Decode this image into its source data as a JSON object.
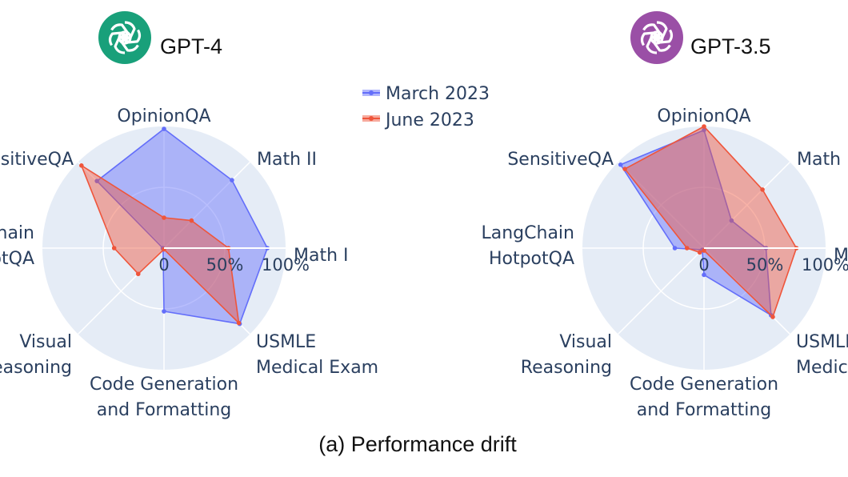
{
  "caption": "(a) Performance drift",
  "legend": [
    {
      "name": "March 2023",
      "color": "#636efa"
    },
    {
      "name": "June 2023",
      "color": "#ef553b"
    }
  ],
  "chart_data": [
    {
      "type": "radar",
      "title": "GPT-4",
      "logo_icon": "openai-logo-icon",
      "logo_color": "#19a07a",
      "categories": [
        "Math I",
        "Math II",
        "OpinionQA",
        "SensitiveQA",
        "LangChain HotpotQA",
        "Visual Reasoning",
        "Code Generation and Formatting",
        "USMLE Medical Exam"
      ],
      "radial_ticks": [
        "0",
        "50%",
        "100%"
      ],
      "range": [
        0,
        100
      ],
      "series": [
        {
          "name": "March 2023",
          "values": [
            85,
            79,
            98,
            78,
            1,
            1,
            52,
            88
          ]
        },
        {
          "name": "June 2023",
          "values": [
            53,
            32,
            25,
            96,
            41,
            30,
            1,
            87
          ]
        }
      ]
    },
    {
      "type": "radar",
      "title": "GPT-3.5",
      "logo_icon": "openai-logo-icon",
      "logo_color": "#9a4fa6",
      "categories": [
        "Math I",
        "Math II",
        "OpinionQA",
        "SensitiveQA",
        "LangChain HotpotQA",
        "Visual Reasoning",
        "Code Generation and Formatting",
        "USMLE Medical Exam"
      ],
      "radial_ticks": [
        "0",
        "50%",
        "100%"
      ],
      "range": [
        0,
        100
      ],
      "series": [
        {
          "name": "March 2023",
          "values": [
            51,
            32,
            97,
            97,
            24,
            2,
            22,
            78
          ]
        },
        {
          "name": "June 2023",
          "values": [
            76,
            68,
            100,
            92,
            14,
            5,
            2,
            80
          ]
        }
      ]
    }
  ]
}
